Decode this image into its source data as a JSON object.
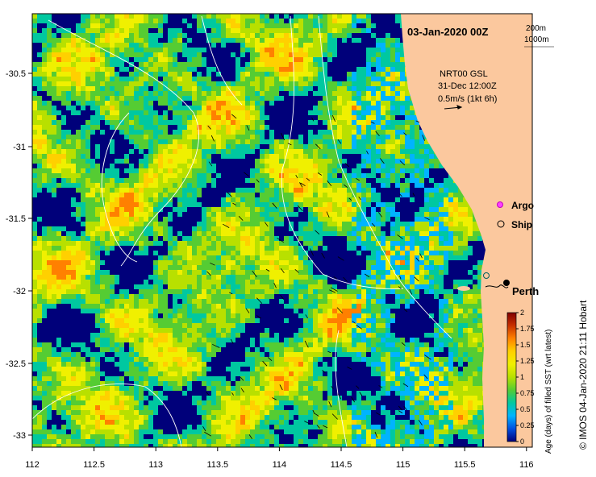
{
  "title": "03-Jan-2020 00Z",
  "depth_legend": {
    "contour_1": "200m",
    "contour_2": "1000m"
  },
  "current_info": {
    "product": "NRT00 GSL",
    "time": "31-Dec 12:00Z",
    "scale": "0.5m/s (1kt 6h)"
  },
  "markers": {
    "argo": "Argo",
    "ship": "Ship",
    "city": "Perth"
  },
  "colorbar": {
    "label": "Age (days) of filled SST (wrt latest)",
    "ticks": [
      "0",
      "0.25",
      "0.5",
      "0.75",
      "1",
      "1.25",
      "1.5",
      "1.75",
      "2"
    ],
    "colors": [
      "#00007a",
      "#0050e0",
      "#00b4ff",
      "#00c8a0",
      "#55cc33",
      "#b8e000",
      "#f0f000",
      "#ffd000",
      "#ff8000",
      "#c83000",
      "#800000"
    ]
  },
  "axes": {
    "x_ticks": [
      "112",
      "112.5",
      "113",
      "113.5",
      "114",
      "114.5",
      "115",
      "115.5",
      "116"
    ],
    "y_ticks": [
      "-30.5",
      "-31",
      "-31.5",
      "-32",
      "-32.5",
      "-33"
    ]
  },
  "credit": "© IMOS 04-Jan-2020 21:11 Hobart",
  "colors": {
    "land": "#fbc89e",
    "ocean_base": "#00007a"
  }
}
